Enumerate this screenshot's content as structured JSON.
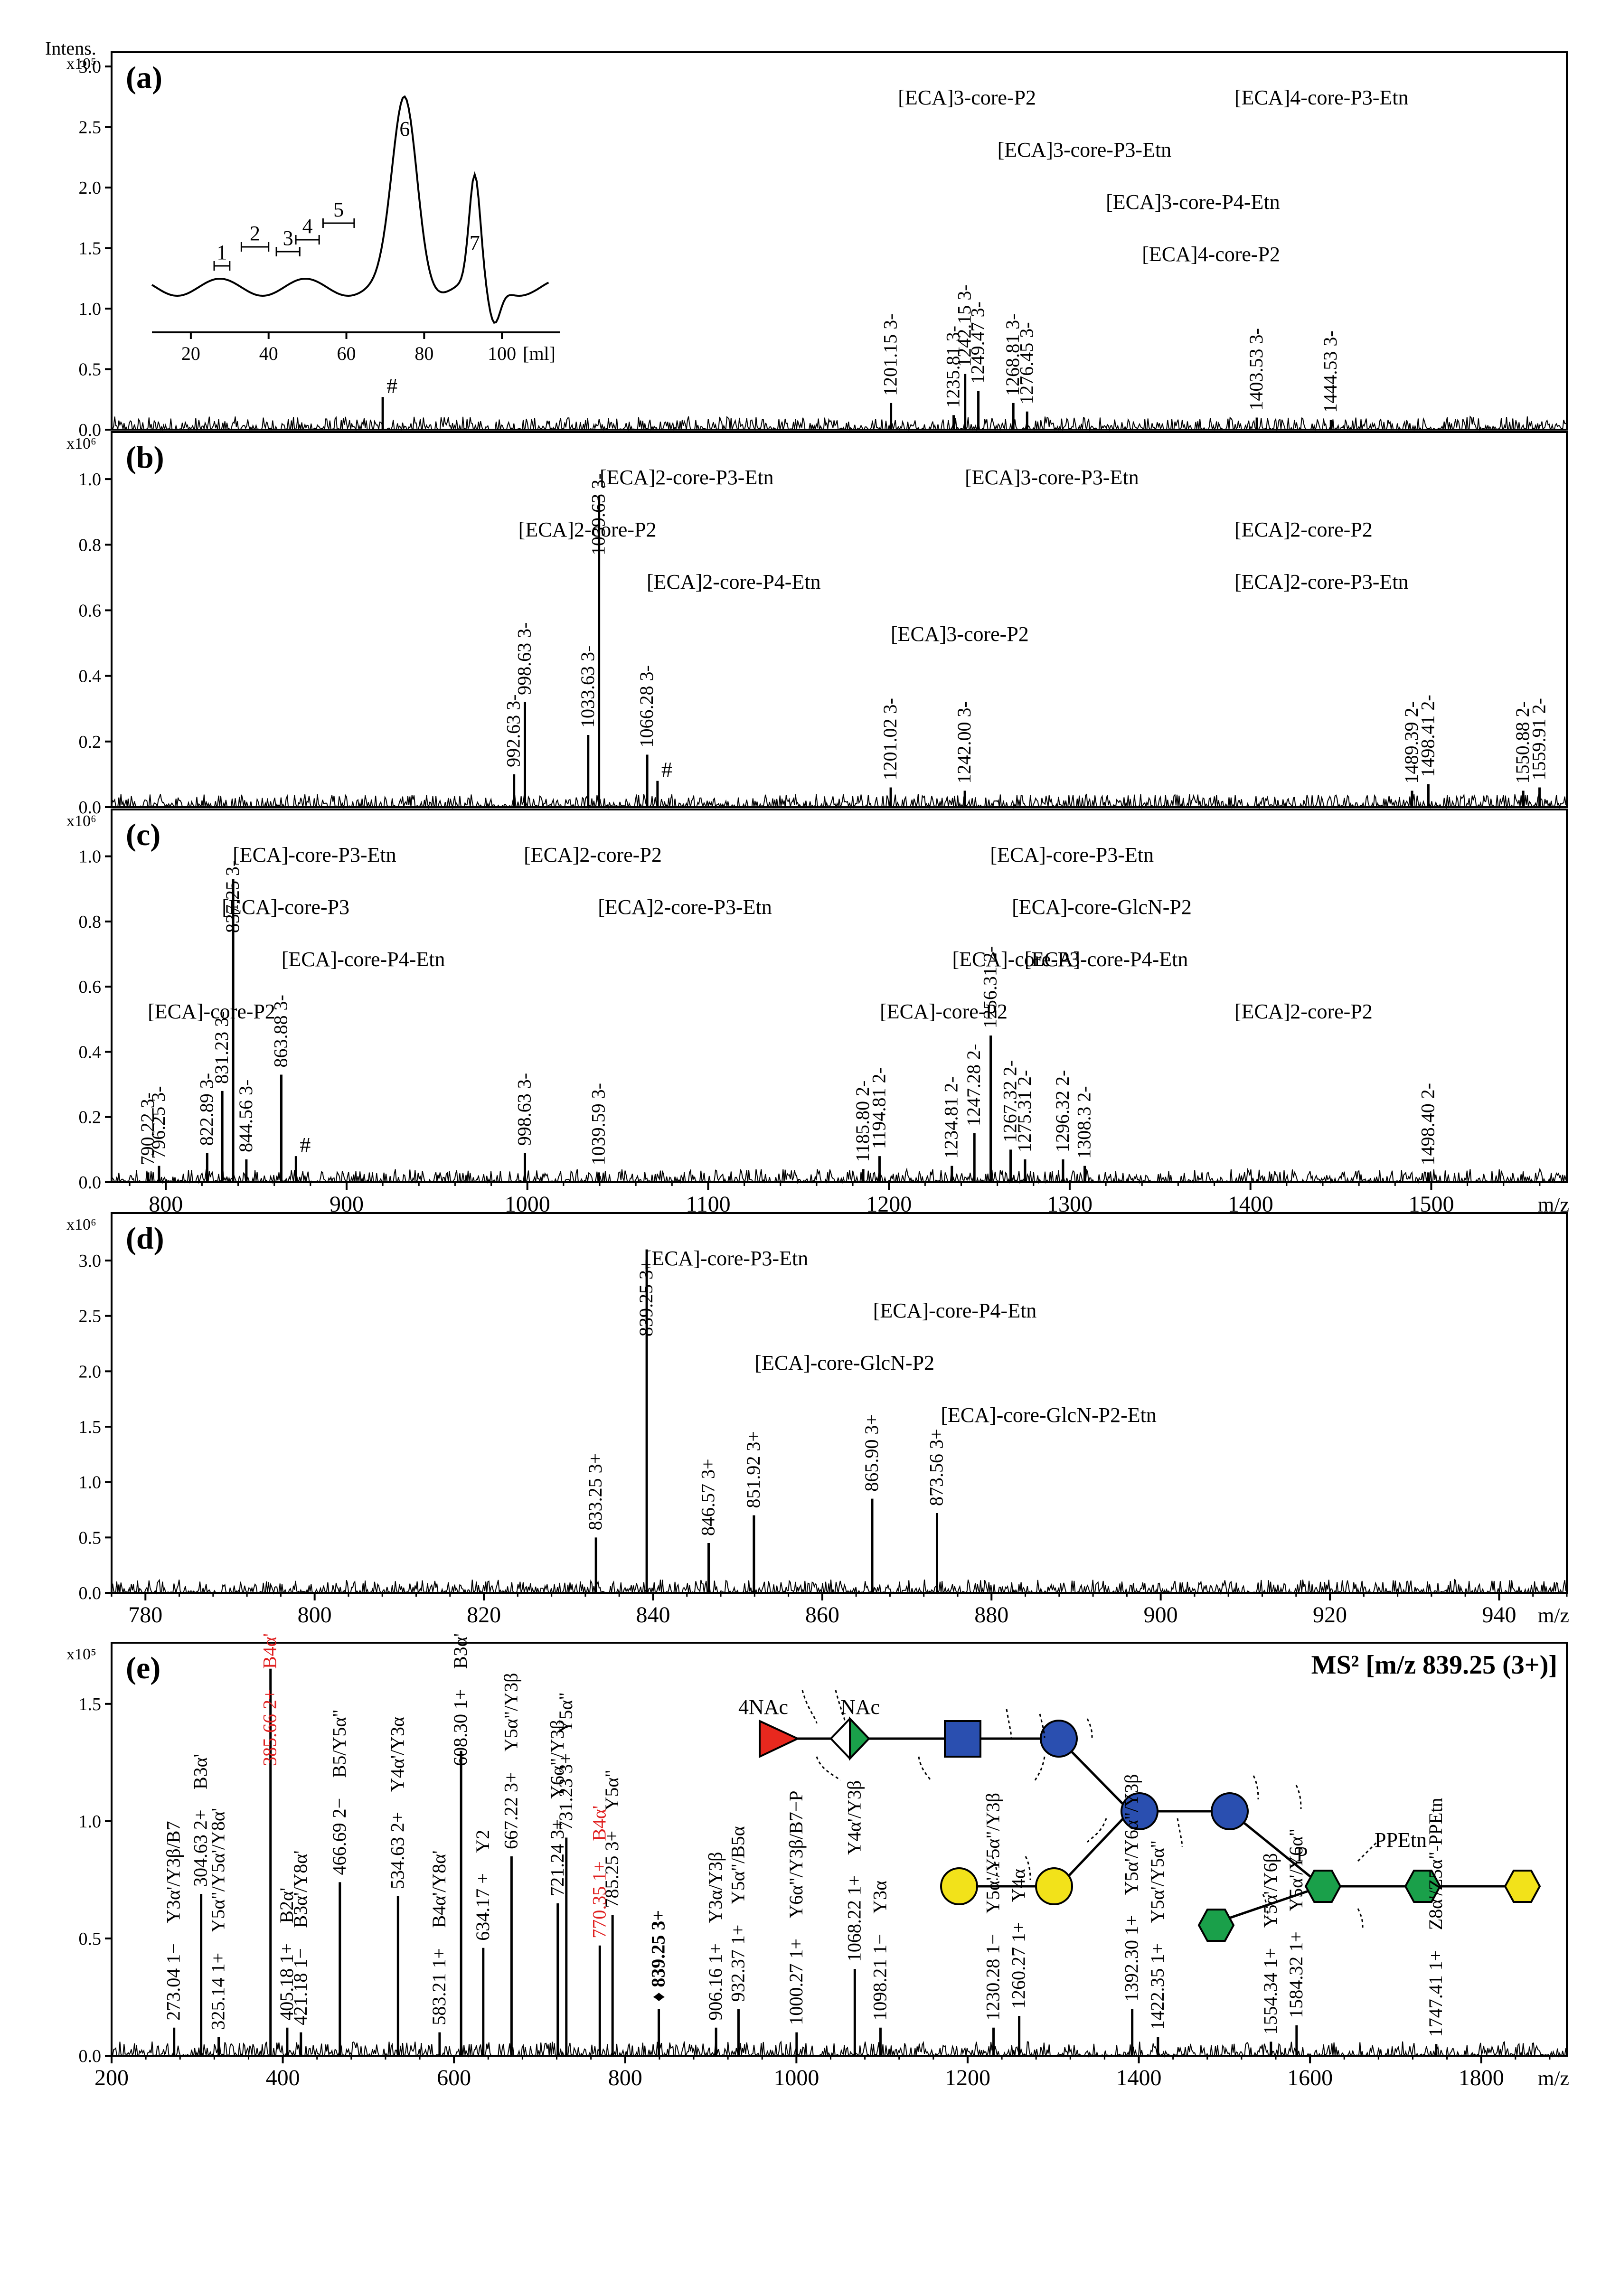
{
  "chart_data": [
    {
      "type": "line",
      "panel": "(a)",
      "ylabel": "Intens.",
      "yscale": "x10^5",
      "ylim": [
        0,
        3.0
      ],
      "xlim": [
        770,
        1575
      ],
      "yticks": [
        "0.0",
        "0.5",
        "1.0",
        "1.5",
        "2.0",
        "2.5",
        "3.0"
      ],
      "peaks": [
        {
          "x": 1201.15,
          "y": 0.22,
          "label": "1201.15 3-"
        },
        {
          "x": 1235.81,
          "y": 0.12,
          "label": "1235.81 3-"
        },
        {
          "x": 1242.15,
          "y": 0.46,
          "label": "1242.15 3-"
        },
        {
          "x": 1249.47,
          "y": 0.32,
          "label": "1249.47 3-"
        },
        {
          "x": 1268.81,
          "y": 0.22,
          "label": "1268.81 3-"
        },
        {
          "x": 1276.45,
          "y": 0.15,
          "label": "1276.45 3-"
        },
        {
          "x": 1403.53,
          "y": 0.1,
          "label": "1403.53 3-"
        },
        {
          "x": 1444.53,
          "y": 0.08,
          "label": "1444.53 3-"
        },
        {
          "x": 920,
          "y": 0.27,
          "label": "#"
        }
      ],
      "annotations": [
        {
          "text": "[ECA]3-core-P2",
          "x": 1205
        },
        {
          "text": "[ECA]3-core-P3-Etn",
          "x": 1260
        },
        {
          "text": "[ECA]3-core-P4-Etn",
          "x": 1320
        },
        {
          "text": "[ECA]4-core-P2",
          "x": 1340
        },
        {
          "text": "[ECA]4-core-P3-Etn",
          "x": 1470
        }
      ],
      "inset": {
        "xlabel": "[ml]",
        "xticks": [
          "20",
          "40",
          "60",
          "80",
          "100"
        ],
        "fractions": [
          "1",
          "2",
          "3",
          "4",
          "5",
          "6",
          "7"
        ]
      }
    },
    {
      "type": "line",
      "panel": "(b)",
      "yscale": "x10^6",
      "ylim": [
        0,
        1.1
      ],
      "xlim": [
        770,
        1575
      ],
      "yticks": [
        "0.0",
        "0.2",
        "0.4",
        "0.6",
        "0.8",
        "1.0"
      ],
      "peaks": [
        {
          "x": 992.63,
          "y": 0.1,
          "label": "992.63 3-"
        },
        {
          "x": 998.63,
          "y": 0.32,
          "label": "998.63 3-"
        },
        {
          "x": 1033.63,
          "y": 0.22,
          "label": "1033.63 3-"
        },
        {
          "x": 1039.63,
          "y": 0.95,
          "label": "1039.63 3-"
        },
        {
          "x": 1066.28,
          "y": 0.16,
          "label": "1066.28 3-"
        },
        {
          "x": 1072,
          "y": 0.08,
          "label": "#"
        },
        {
          "x": 1201.02,
          "y": 0.06,
          "label": "1201.02 3-"
        },
        {
          "x": 1242.0,
          "y": 0.05,
          "label": "1242.00 3-"
        },
        {
          "x": 1489.39,
          "y": 0.05,
          "label": "1489.39 2-"
        },
        {
          "x": 1498.41,
          "y": 0.07,
          "label": "1498.41 2-"
        },
        {
          "x": 1550.88,
          "y": 0.05,
          "label": "1550.88 2-"
        },
        {
          "x": 1559.91,
          "y": 0.06,
          "label": "1559.91 2-"
        }
      ],
      "annotations": [
        {
          "text": "[ECA]2-core-P3-Etn",
          "x": 1040
        },
        {
          "text": "[ECA]2-core-P2",
          "x": 995
        },
        {
          "text": "[ECA]2-core-P4-Etn",
          "x": 1066
        },
        {
          "text": "[ECA]3-core-P2",
          "x": 1201
        },
        {
          "text": "[ECA]3-core-P3-Etn",
          "x": 1242
        },
        {
          "text": "[ECA]2-core-P2",
          "x": 1490
        },
        {
          "text": "[ECA]2-core-P3-Etn",
          "x": 1553
        }
      ]
    },
    {
      "type": "line",
      "panel": "(c)",
      "yscale": "x10^6",
      "ylim": [
        0,
        1.1
      ],
      "xlim": [
        770,
        1575
      ],
      "xticks": [
        "800",
        "900",
        "1000",
        "1100",
        "1200",
        "1300",
        "1400",
        "1500"
      ],
      "xlabel": "m/z",
      "yticks": [
        "0.0",
        "0.2",
        "0.4",
        "0.6",
        "0.8",
        "1.0"
      ],
      "peaks": [
        {
          "x": 790.22,
          "y": 0.03,
          "label": "790.22 3-"
        },
        {
          "x": 796.25,
          "y": 0.05,
          "label": "796.25 3-"
        },
        {
          "x": 822.89,
          "y": 0.09,
          "label": "822.89 3-"
        },
        {
          "x": 831.23,
          "y": 0.28,
          "label": "831.23 3-"
        },
        {
          "x": 837.25,
          "y": 0.93,
          "label": "837.25 3-"
        },
        {
          "x": 844.56,
          "y": 0.07,
          "label": "844.56 3-"
        },
        {
          "x": 863.88,
          "y": 0.33,
          "label": "863.88 3-"
        },
        {
          "x": 872,
          "y": 0.08,
          "label": "#"
        },
        {
          "x": 998.63,
          "y": 0.09,
          "label": "998.63 3-"
        },
        {
          "x": 1039.59,
          "y": 0.03,
          "label": "1039.59 3-"
        },
        {
          "x": 1185.8,
          "y": 0.04,
          "label": "1185.80 2-"
        },
        {
          "x": 1194.81,
          "y": 0.08,
          "label": "1194.81 2-"
        },
        {
          "x": 1234.81,
          "y": 0.05,
          "label": "1234.81 2-"
        },
        {
          "x": 1247.28,
          "y": 0.15,
          "label": "1247.28 2-"
        },
        {
          "x": 1256.31,
          "y": 0.45,
          "label": "1256.31 2-"
        },
        {
          "x": 1267.32,
          "y": 0.1,
          "label": "1267.32 2-"
        },
        {
          "x": 1275.31,
          "y": 0.07,
          "label": "1275.31 2-"
        },
        {
          "x": 1296.32,
          "y": 0.07,
          "label": "1296.32 2-"
        },
        {
          "x": 1308.3,
          "y": 0.05,
          "label": "1308.3 2-"
        },
        {
          "x": 1498.4,
          "y": 0.03,
          "label": "1498.40 2-"
        }
      ],
      "annotations": [
        {
          "text": "[ECA]-core-P3-Etn",
          "x": 837
        },
        {
          "text": "[ECA]-core-P3",
          "x": 831
        },
        {
          "text": "[ECA]-core-P4-Etn",
          "x": 864
        },
        {
          "text": "[ECA]-core-P2",
          "x": 790
        },
        {
          "text": "[ECA]2-core-P2",
          "x": 998
        },
        {
          "text": "[ECA]2-core-P3-Etn",
          "x": 1039
        },
        {
          "text": "[ECA]-core-P3",
          "x": 1235
        },
        {
          "text": "[ECA]-core-P2",
          "x": 1195
        },
        {
          "text": "[ECA]-core-P3-Etn",
          "x": 1256
        },
        {
          "text": "[ECA]-core-GlcN-P2",
          "x": 1268
        },
        {
          "text": "[ECA]-core-P4-Etn",
          "x": 1275
        },
        {
          "text": "[ECA]2-core-P2",
          "x": 1498
        }
      ]
    },
    {
      "type": "line",
      "panel": "(d)",
      "yscale": "x10^6",
      "ylim": [
        0,
        3.3
      ],
      "xlim": [
        776,
        948
      ],
      "xticks": [
        "780",
        "800",
        "820",
        "840",
        "860",
        "880",
        "900",
        "920",
        "940"
      ],
      "xlabel": "m/z",
      "yticks": [
        "0.0",
        "0.5",
        "1.0",
        "1.5",
        "2.0",
        "2.5",
        "3.0"
      ],
      "peaks": [
        {
          "x": 833.25,
          "y": 0.5,
          "label": "833.25 3+"
        },
        {
          "x": 839.25,
          "y": 3.1,
          "label": "839.25 3+"
        },
        {
          "x": 846.57,
          "y": 0.45,
          "label": "846.57 3+"
        },
        {
          "x": 851.92,
          "y": 0.7,
          "label": "851.92 3+"
        },
        {
          "x": 865.9,
          "y": 0.85,
          "label": "865.90 3+"
        },
        {
          "x": 873.56,
          "y": 0.72,
          "label": "873.56 3+"
        }
      ],
      "annotations": [
        {
          "text": "[ECA]-core-P3-Etn",
          "x": 839
        },
        {
          "text": "[ECA]-core-P4-Etn",
          "x": 866
        },
        {
          "text": "[ECA]-core-GlcN-P2",
          "x": 852
        },
        {
          "text": "[ECA]-core-GlcN-P2-Etn",
          "x": 874
        }
      ]
    },
    {
      "type": "line",
      "panel": "(e)",
      "title": "MS² [m/z 839.25 (3+)]",
      "yscale": "x10^5",
      "ylim": [
        0,
        1.7
      ],
      "xlim": [
        200,
        1900
      ],
      "xticks": [
        "200",
        "400",
        "600",
        "800",
        "1000",
        "1200",
        "1400",
        "1600",
        "1800"
      ],
      "xlabel": "m/z",
      "yticks": [
        "0.0",
        "0.5",
        "1.0",
        "1.5"
      ],
      "peaks": [
        {
          "x": 273.04,
          "y": 0.12,
          "label": "273.04 1−",
          "ion": "Y3α'/Y3β/B7"
        },
        {
          "x": 304.63,
          "y": 0.69,
          "label": "304.63 2+",
          "ion": "B3α'"
        },
        {
          "x": 325.14,
          "y": 0.08,
          "label": "325.14 1+",
          "ion": "Y5α\"/Y5α'/Y8α'"
        },
        {
          "x": 385.66,
          "y": 1.65,
          "label": "385.66 2+",
          "ion": "B4α'",
          "red": true
        },
        {
          "x": 405.18,
          "y": 0.12,
          "label": "405.18 1+",
          "ion": "B2α'"
        },
        {
          "x": 421.18,
          "y": 0.1,
          "label": "421.18 1−",
          "ion": "B3α'/Y8α'"
        },
        {
          "x": 466.69,
          "y": 0.74,
          "label": "466.69 2−",
          "ion": "B5/Y5α\""
        },
        {
          "x": 534.63,
          "y": 0.68,
          "label": "534.63 2+",
          "ion": "Y4α'/Y3α"
        },
        {
          "x": 583.21,
          "y": 0.1,
          "label": "583.21 1+",
          "ion": "B4α'/Y8α'"
        },
        {
          "x": 608.3,
          "y": 1.3,
          "label": "608.30 1+",
          "ion": "B3α'"
        },
        {
          "x": 634.17,
          "y": 0.46,
          "label": "634.17 +",
          "ion": "Y2"
        },
        {
          "x": 667.22,
          "y": 0.85,
          "label": "667.22 3+",
          "ion": "Y5α\"/Y3β"
        },
        {
          "x": 721.24,
          "y": 0.65,
          "label": "721.24 3+",
          "ion": "Y6α\"/Y3β"
        },
        {
          "x": 731.23,
          "y": 0.93,
          "label": "731.23 3+",
          "ion": "Y5α\""
        },
        {
          "x": 770.35,
          "y": 0.47,
          "label": "770.35 1+",
          "ion": "B4α'",
          "red": true
        },
        {
          "x": 785.25,
          "y": 0.6,
          "label": "785.25 3+",
          "ion": "Y5α\""
        },
        {
          "x": 839.25,
          "y": 0.2,
          "label": "♦ 839.25 3+",
          "bold": true
        },
        {
          "x": 906.16,
          "y": 0.12,
          "label": "906.16 1+",
          "ion": "Y3α/Y3β"
        },
        {
          "x": 932.37,
          "y": 0.2,
          "label": "932.37 1+",
          "ion": "Y5α\"/B5α"
        },
        {
          "x": 1000.27,
          "y": 0.1,
          "label": "1000.27 1+",
          "ion": "Y6α\"/Y3β/B7−P"
        },
        {
          "x": 1068.22,
          "y": 0.37,
          "label": "1068.22 1+",
          "ion": "Y4α'/Y3β"
        },
        {
          "x": 1098.21,
          "y": 0.12,
          "label": "1098.21 1−",
          "ion": "Y3α"
        },
        {
          "x": 1230.28,
          "y": 0.12,
          "label": "1230.28 1−",
          "ion": "Y5α'/Y5α\"/Y3β"
        },
        {
          "x": 1260.27,
          "y": 0.17,
          "label": "1260.27 1+",
          "ion": "Y4α"
        },
        {
          "x": 1392.3,
          "y": 0.2,
          "label": "1392.30 1+",
          "ion": "Y5α'/Y6α\"/Y3β"
        },
        {
          "x": 1422.35,
          "y": 0.08,
          "label": "1422.35 1+",
          "ion": "Y5α'/Y5α\""
        },
        {
          "x": 1554.34,
          "y": 0.06,
          "label": "1554.34 1+",
          "ion": "Y5α'/Y6β"
        },
        {
          "x": 1584.32,
          "y": 0.13,
          "label": "1584.32 1+",
          "ion": "Y5α'/Y6α\""
        },
        {
          "x": 1747.41,
          "y": 0.05,
          "label": "1747.41 1+",
          "ion": "Z8α'/Z5α\"-PPEtn"
        }
      ],
      "glycan_labels": {
        "nac_left": "4NAc",
        "nac_right": "NAc",
        "p": "P",
        "ppetn": "PPEtn"
      }
    }
  ]
}
